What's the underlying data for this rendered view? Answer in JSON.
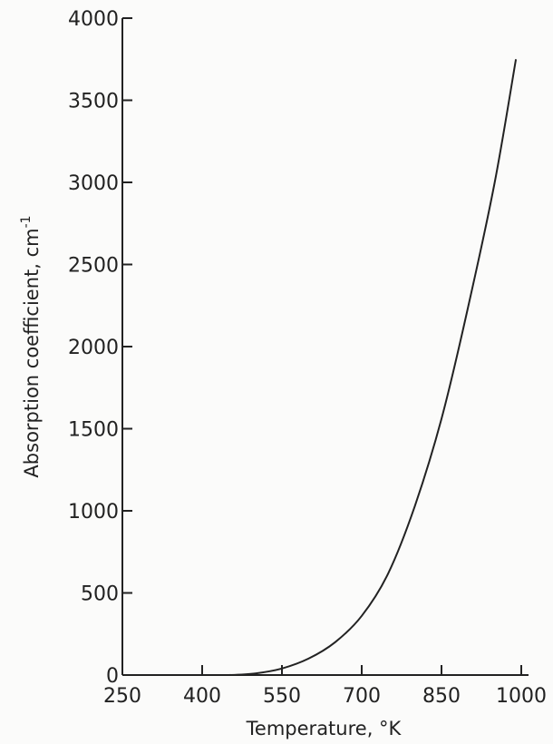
{
  "chart_data": {
    "type": "line",
    "title": "",
    "xlabel": "Temperature, °K",
    "ylabel": "Absorption coefficient, cm",
    "ylabel_superscript": "-1",
    "xlim": [
      250,
      1000
    ],
    "ylim": [
      0,
      4000
    ],
    "x_ticks": [
      250,
      400,
      550,
      700,
      850,
      1000
    ],
    "y_ticks": [
      0,
      500,
      1000,
      1500,
      2000,
      2500,
      3000,
      3500,
      4000
    ],
    "grid": false,
    "series": [
      {
        "x": [
          250,
          350,
          400,
          450,
          500,
          550,
          600,
          650,
          700,
          750,
          800,
          850,
          900,
          950,
          990
        ],
        "y": [
          0,
          0,
          0,
          0,
          10,
          40,
          100,
          200,
          360,
          620,
          1030,
          1560,
          2240,
          3000,
          3750
        ]
      }
    ]
  }
}
